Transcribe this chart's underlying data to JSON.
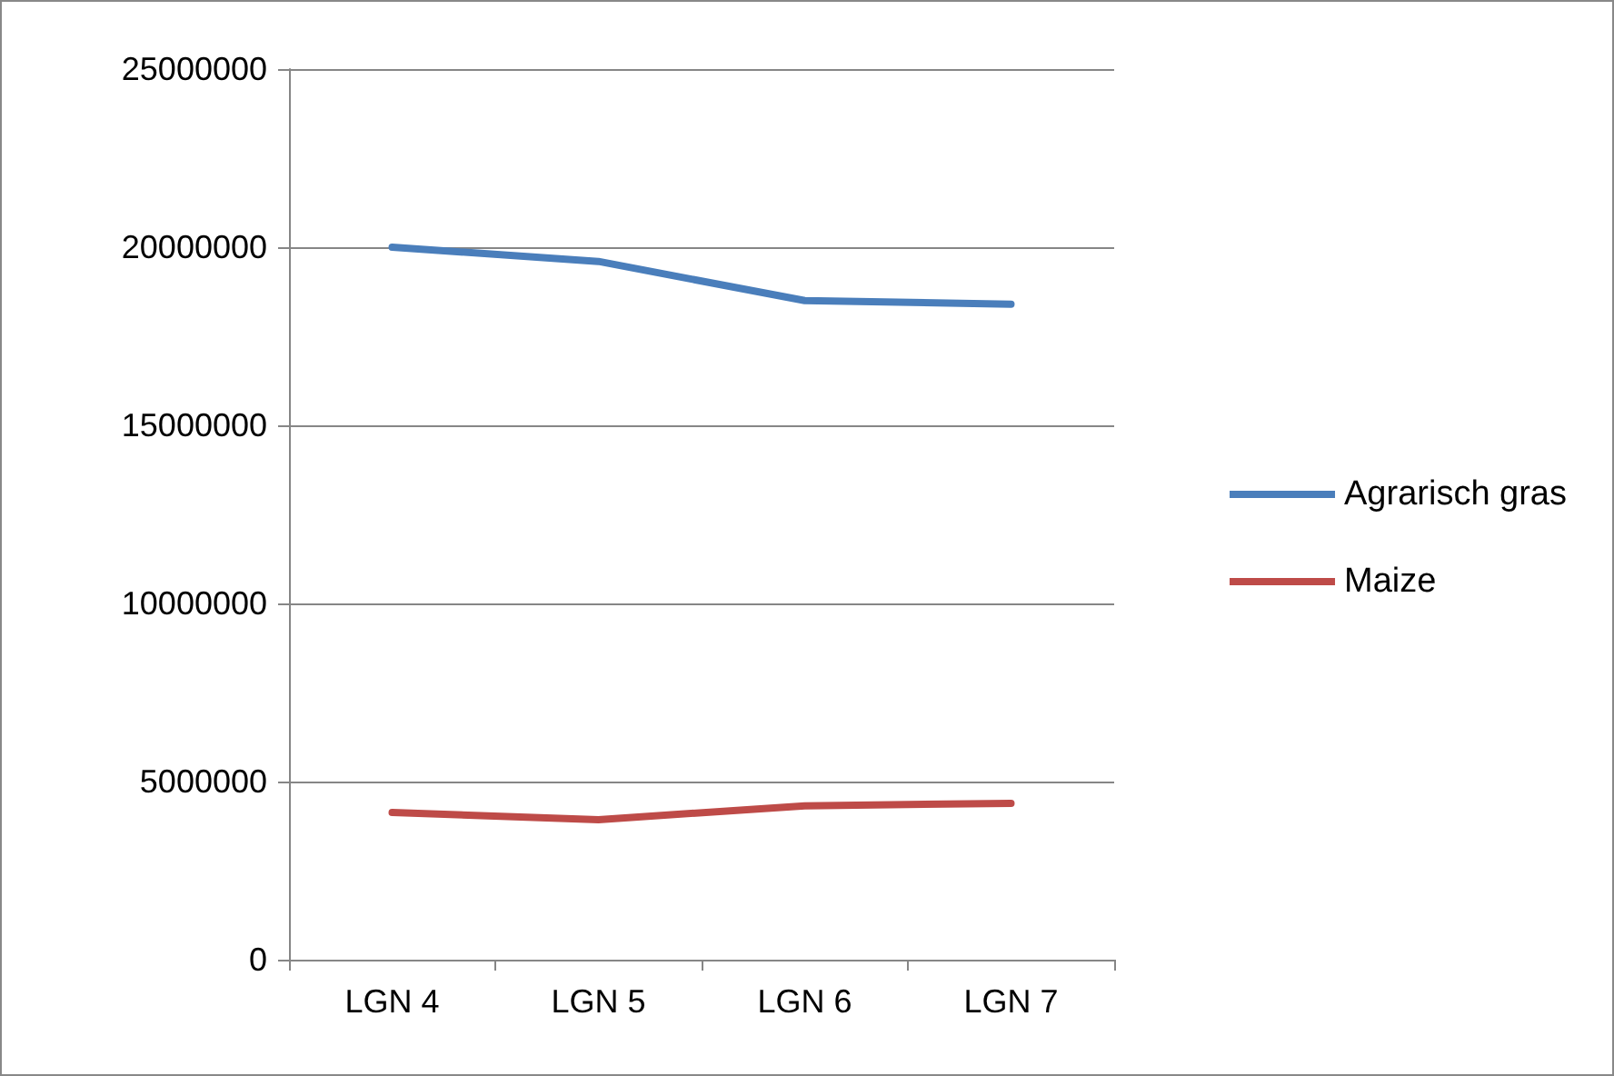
{
  "chart_data": {
    "type": "line",
    "categories": [
      "LGN 4",
      "LGN 5",
      "LGN 6",
      "LGN 7"
    ],
    "series": [
      {
        "name": "Agrarisch gras",
        "color": "#4a7ebb",
        "values": [
          20000000,
          19600000,
          18500000,
          18400000
        ]
      },
      {
        "name": "Maize",
        "color": "#be4b48",
        "values": [
          4130000,
          3930000,
          4320000,
          4390000
        ]
      }
    ],
    "ylim": [
      0,
      25000000
    ],
    "yticks": [
      0,
      5000000,
      10000000,
      15000000,
      20000000,
      25000000
    ],
    "grid": "y",
    "legend": "right",
    "marker": "none",
    "line_style": "solid"
  }
}
